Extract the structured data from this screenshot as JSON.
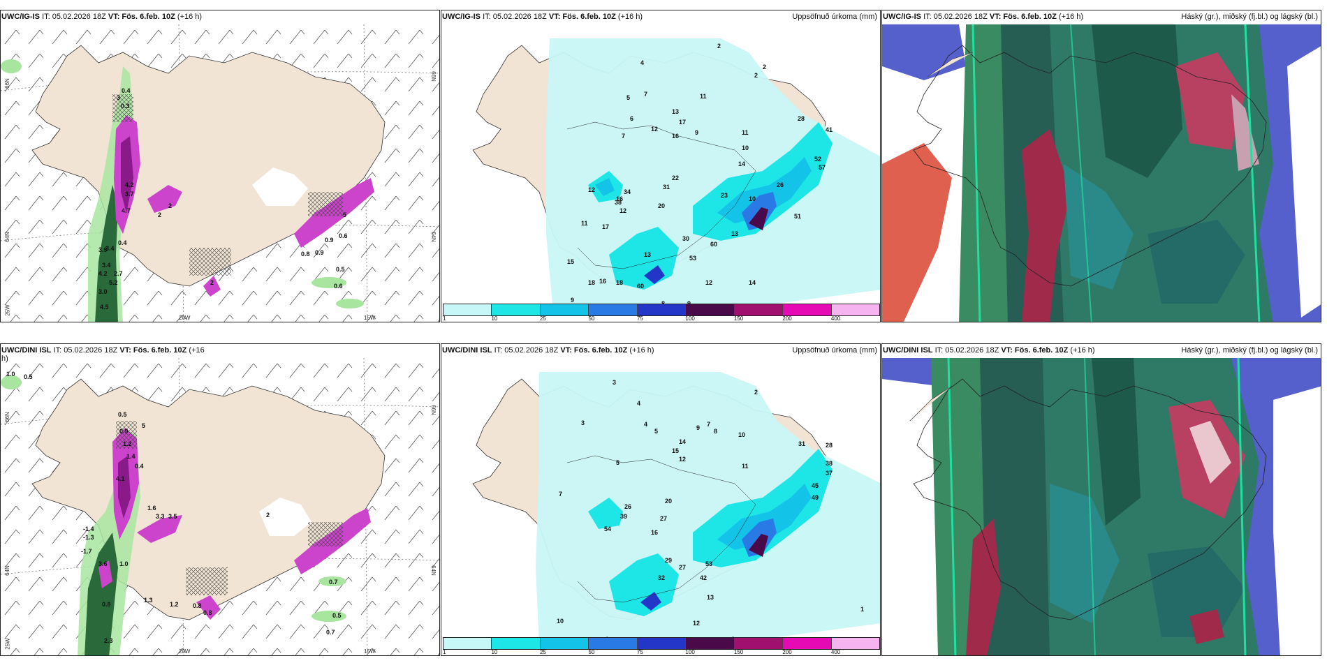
{
  "panels": {
    "p1": {
      "model": "UWC/IG-IS",
      "run": "IT: 05.02.2026 18Z",
      "valid_label": "VT:",
      "valid": "Fös. 6.feb. 10Z",
      "lead": "(+16 h)",
      "right": ""
    },
    "p2": {
      "model": "UWC/IG-IS",
      "run": "IT: 05.02.2026 18Z",
      "valid_label": "VT:",
      "valid": "Fös. 6.feb. 10Z",
      "lead": "(+16 h)",
      "right": "Uppsöfnuð úrkoma (mm)"
    },
    "p3": {
      "model": "UWC/IG-IS",
      "run": "IT: 05.02.2026 18Z",
      "valid_label": "VT:",
      "valid": "Fös. 6.feb. 10Z",
      "lead": "(+16 h)",
      "right": "Háský (gr.), miðský (fj.bl.) og lágský (bl.)"
    },
    "p4": {
      "model": "UWC/DINI ISL",
      "run": "IT: 05.02.2026 18Z",
      "valid_label": "VT:",
      "valid": "Fös. 6.feb. 10Z",
      "lead": "(+16",
      "lead2": "h)",
      "right": ""
    },
    "p5": {
      "model": "UWC/DINI ISL",
      "run": "IT: 05.02.2026 18Z",
      "valid_label": "VT:",
      "valid": "Fös. 6.feb. 10Z",
      "lead": "(+16 h)",
      "right": "Uppsöfnuð úrkoma (mm)"
    },
    "p6": {
      "model": "UWC/DINI ISL",
      "run": "IT: 05.02.2026 18Z",
      "valid_label": "VT:",
      "valid": "Fös. 6.feb. 10Z",
      "lead": "(+16 h)",
      "right": "Háský (gr.), miðský (fj.bl.) og lágský (bl.)"
    }
  },
  "axes": {
    "lat66": "66N",
    "lat64": "64N",
    "lat65": "65N",
    "lon25": "25W",
    "lon20": "20W",
    "lon15": "15W"
  },
  "colorbar": {
    "ticks": [
      "1",
      "10",
      "25",
      "50",
      "75",
      "100",
      "150",
      "200",
      "400"
    ],
    "colors": [
      "#c8f7f7",
      "#1ee6e6",
      "#14c3e8",
      "#2a7ae6",
      "#2436c8",
      "#4a0a4a",
      "#a0106e",
      "#e60ab4",
      "#f5b4f0"
    ]
  },
  "labels": {
    "p1": [
      "0.4",
      "3",
      "0.3",
      "4.2",
      "3.7",
      "2",
      "2",
      "4.7",
      "3.4",
      "0.4",
      "3.9",
      "3.4",
      "4.2",
      "2.7",
      "5.2",
      "3.0",
      "4.5",
      "2",
      "0.9",
      "0.8",
      "0.9",
      "0.6",
      "0.5",
      "0.6",
      "5"
    ],
    "p2": [
      "2",
      "4",
      "2",
      "2",
      "5",
      "7",
      "11",
      "13",
      "17",
      "16",
      "12",
      "9",
      "6",
      "7",
      "11",
      "10",
      "14",
      "28",
      "41",
      "52",
      "57",
      "34",
      "31",
      "22",
      "20",
      "16",
      "12",
      "38",
      "12",
      "17",
      "11",
      "10",
      "23",
      "26",
      "13",
      "51",
      "30",
      "60",
      "53",
      "13",
      "18",
      "15",
      "16",
      "18",
      "60",
      "9",
      "12",
      "14",
      "9",
      "12",
      "8"
    ],
    "p4": [
      "1.0",
      "0.5",
      "0.5",
      "0.9",
      "5",
      "1.2",
      "1.4",
      "0.4",
      "4.1",
      "-1.4",
      "-1.3",
      "-1.7",
      "3.6",
      "0.8",
      "1.0",
      "1.3",
      "1.2",
      "2.3",
      "1.6",
      "3.3",
      "3.5",
      "2",
      "0.8",
      "0.8",
      "0.7",
      "0.5",
      "0.7"
    ],
    "p5": [
      "3",
      "4",
      "2",
      "4",
      "5",
      "7",
      "3",
      "8",
      "9",
      "10",
      "12",
      "14",
      "15",
      "11",
      "5",
      "7",
      "31",
      "28",
      "38",
      "37",
      "45",
      "49",
      "39",
      "27",
      "26",
      "20",
      "16",
      "42",
      "54",
      "29",
      "27",
      "32",
      "53",
      "13",
      "12",
      "10",
      "8",
      "1",
      "9"
    ],
    "p6": []
  }
}
